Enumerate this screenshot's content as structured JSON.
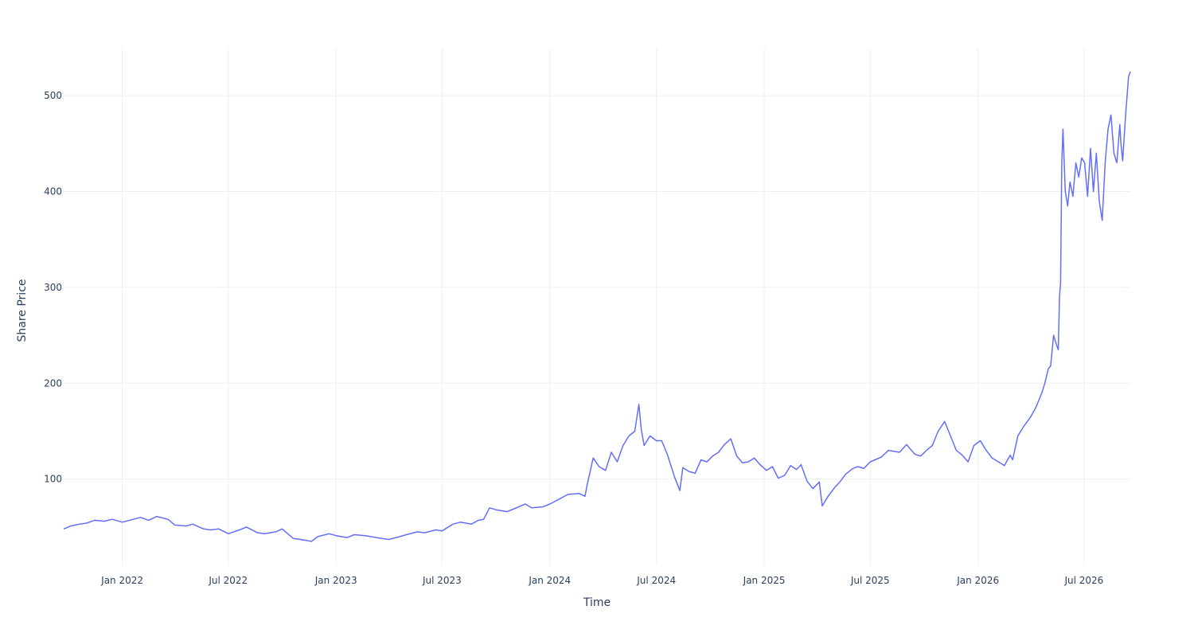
{
  "chart_data": {
    "type": "line",
    "title": "",
    "xlabel": "Time",
    "ylabel": "Share Price",
    "grid": true,
    "legend": "none",
    "xlim": [
      "2021-09-23",
      "2026-09-18"
    ],
    "ylim": [
      10,
      550
    ],
    "line_color": "#636efa",
    "x_ticks": [
      {
        "date": "2022-01-01",
        "label": "Jan 2022"
      },
      {
        "date": "2022-07-01",
        "label": "Jul 2022"
      },
      {
        "date": "2023-01-01",
        "label": "Jan 2023"
      },
      {
        "date": "2023-07-01",
        "label": "Jul 2023"
      },
      {
        "date": "2024-01-01",
        "label": "Jan 2024"
      },
      {
        "date": "2024-07-01",
        "label": "Jul 2024"
      },
      {
        "date": "2025-01-01",
        "label": "Jan 2025"
      },
      {
        "date": "2025-07-01",
        "label": "Jul 2025"
      },
      {
        "date": "2026-01-01",
        "label": "Jan 2026"
      },
      {
        "date": "2026-07-01",
        "label": "Jul 2026"
      }
    ],
    "y_ticks": [
      {
        "value": 100,
        "label": "100"
      },
      {
        "value": 200,
        "label": "200"
      },
      {
        "value": 300,
        "label": "300"
      },
      {
        "value": 400,
        "label": "400"
      },
      {
        "value": 500,
        "label": "500"
      }
    ],
    "series": [
      {
        "x": [
          "2021-09-23",
          "2021-10-05",
          "2021-10-20",
          "2021-11-01",
          "2021-11-15",
          "2021-12-01",
          "2021-12-15",
          "2022-01-01",
          "2022-01-20",
          "2022-02-01",
          "2022-02-15",
          "2022-03-01",
          "2022-03-20",
          "2022-04-01",
          "2022-04-20",
          "2022-05-01",
          "2022-05-20",
          "2022-06-01",
          "2022-06-15",
          "2022-07-01",
          "2022-07-20",
          "2022-08-01",
          "2022-08-20",
          "2022-09-01",
          "2022-09-20",
          "2022-10-01",
          "2022-10-20",
          "2022-11-01",
          "2022-11-20",
          "2022-12-01",
          "2022-12-20",
          "2023-01-01",
          "2023-01-20",
          "2023-02-01",
          "2023-02-20",
          "2023-03-01",
          "2023-03-20",
          "2023-04-01",
          "2023-04-20",
          "2023-05-01",
          "2023-05-20",
          "2023-06-01",
          "2023-06-20",
          "2023-07-01",
          "2023-07-20",
          "2023-08-01",
          "2023-08-20",
          "2023-09-01",
          "2023-09-10",
          "2023-09-20",
          "2023-10-01",
          "2023-10-20",
          "2023-11-01",
          "2023-11-20",
          "2023-12-01",
          "2023-12-20",
          "2024-01-01",
          "2024-01-20",
          "2024-02-01",
          "2024-02-20",
          "2024-03-01",
          "2024-03-05",
          "2024-03-15",
          "2024-03-25",
          "2024-04-05",
          "2024-04-15",
          "2024-04-25",
          "2024-05-05",
          "2024-05-15",
          "2024-05-25",
          "2024-06-01",
          "2024-06-05",
          "2024-06-10",
          "2024-06-20",
          "2024-07-01",
          "2024-07-10",
          "2024-07-20",
          "2024-08-01",
          "2024-08-10",
          "2024-08-15",
          "2024-08-25",
          "2024-09-05",
          "2024-09-15",
          "2024-09-25",
          "2024-10-05",
          "2024-10-15",
          "2024-10-25",
          "2024-11-05",
          "2024-11-15",
          "2024-11-25",
          "2024-12-05",
          "2024-12-15",
          "2024-12-25",
          "2025-01-05",
          "2025-01-15",
          "2025-01-25",
          "2025-02-05",
          "2025-02-15",
          "2025-02-25",
          "2025-03-05",
          "2025-03-15",
          "2025-03-25",
          "2025-04-05",
          "2025-04-10",
          "2025-04-20",
          "2025-05-01",
          "2025-05-10",
          "2025-05-20",
          "2025-06-01",
          "2025-06-10",
          "2025-06-20",
          "2025-07-01",
          "2025-07-20",
          "2025-08-01",
          "2025-08-20",
          "2025-09-01",
          "2025-09-15",
          "2025-09-25",
          "2025-10-05",
          "2025-10-15",
          "2025-10-25",
          "2025-11-05",
          "2025-11-15",
          "2025-11-25",
          "2025-12-05",
          "2025-12-15",
          "2025-12-25",
          "2026-01-05",
          "2026-01-15",
          "2026-01-25",
          "2026-02-05",
          "2026-02-15",
          "2026-02-25",
          "2026-03-01",
          "2026-03-10",
          "2026-03-20",
          "2026-04-01",
          "2026-04-10",
          "2026-04-20",
          "2026-04-25",
          "2026-05-01",
          "2026-05-05",
          "2026-05-10",
          "2026-05-15",
          "2026-05-18",
          "2026-05-20",
          "2026-05-22",
          "2026-05-24",
          "2026-05-26",
          "2026-05-30",
          "2026-06-03",
          "2026-06-07",
          "2026-06-12",
          "2026-06-17",
          "2026-06-22",
          "2026-06-27",
          "2026-07-02",
          "2026-07-07",
          "2026-07-12",
          "2026-07-17",
          "2026-07-22",
          "2026-07-27",
          "2026-08-01",
          "2026-08-06",
          "2026-08-11",
          "2026-08-16",
          "2026-08-21",
          "2026-08-26",
          "2026-08-31",
          "2026-09-02",
          "2026-09-05",
          "2026-09-10",
          "2026-09-15",
          "2026-09-18"
        ],
        "y": [
          48,
          51,
          53,
          54,
          57,
          56,
          58,
          55,
          58,
          60,
          57,
          61,
          58,
          52,
          51,
          53,
          48,
          47,
          48,
          43,
          47,
          50,
          44,
          43,
          45,
          48,
          38,
          37,
          35,
          40,
          43,
          41,
          39,
          42,
          41,
          40,
          38,
          37,
          40,
          42,
          45,
          44,
          47,
          46,
          53,
          55,
          53,
          57,
          58,
          70,
          68,
          66,
          69,
          74,
          70,
          71,
          74,
          80,
          84,
          85,
          82,
          95,
          122,
          113,
          109,
          128,
          118,
          135,
          145,
          150,
          178,
          152,
          135,
          145,
          140,
          140,
          125,
          102,
          88,
          112,
          108,
          106,
          120,
          118,
          124,
          128,
          136,
          142,
          124,
          117,
          118,
          122,
          115,
          109,
          113,
          101,
          104,
          114,
          110,
          115,
          98,
          90,
          97,
          72,
          82,
          91,
          97,
          105,
          111,
          113,
          111,
          118,
          123,
          130,
          128,
          136,
          126,
          124,
          130,
          135,
          150,
          160,
          145,
          130,
          125,
          118,
          135,
          140,
          130,
          122,
          118,
          114,
          125,
          120,
          145,
          155,
          165,
          175,
          190,
          200,
          215,
          218,
          250,
          240,
          235,
          290,
          305,
          430,
          465,
          400,
          385,
          410,
          395,
          430,
          415,
          435,
          430,
          395,
          445,
          400,
          440,
          390,
          370,
          430,
          465,
          480,
          440,
          430,
          470,
          450,
          432,
          480,
          520,
          525
        ]
      }
    ]
  }
}
